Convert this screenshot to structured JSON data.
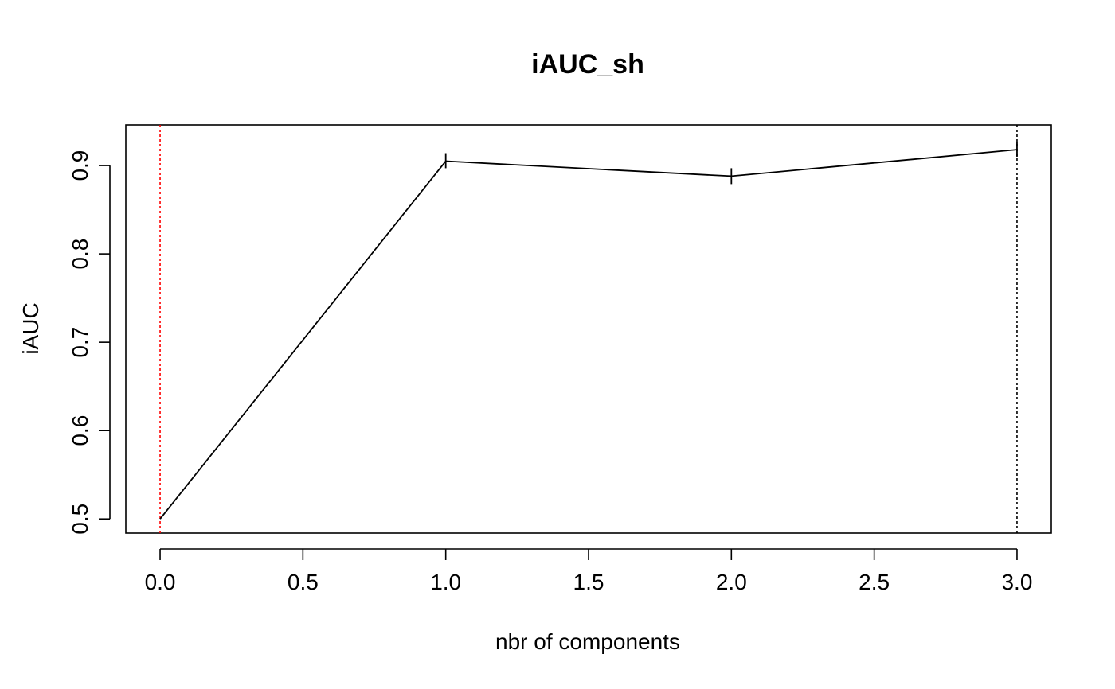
{
  "chart_data": {
    "type": "line",
    "title": "iAUC_sh",
    "xlabel": "nbr of components",
    "ylabel": "iAUC",
    "xlim": [
      -0.12,
      3.12
    ],
    "ylim": [
      0.484,
      0.946
    ],
    "x_ticks": [
      0.0,
      0.5,
      1.0,
      1.5,
      2.0,
      2.5,
      3.0
    ],
    "x_tick_labels": [
      "0.0",
      "0.5",
      "1.0",
      "1.5",
      "2.0",
      "2.5",
      "3.0"
    ],
    "y_ticks": [
      0.5,
      0.6,
      0.7,
      0.8,
      0.9
    ],
    "y_tick_labels": [
      "0.5",
      "0.6",
      "0.7",
      "0.8",
      "0.9"
    ],
    "series": [
      {
        "x": [
          0,
          1,
          2,
          3
        ],
        "values": [
          0.5,
          0.905,
          0.888,
          0.918
        ],
        "err_low": [
          0.5,
          0.897,
          0.879,
          0.91
        ],
        "err_high": [
          0.5,
          0.914,
          0.897,
          0.927
        ],
        "color": "#000000"
      }
    ],
    "reference_lines": [
      {
        "x": 0,
        "color": "#ff0000",
        "style": "dotted"
      },
      {
        "x": 3,
        "color": "#000000",
        "style": "dotted"
      }
    ],
    "grid": false,
    "legend": "none"
  }
}
